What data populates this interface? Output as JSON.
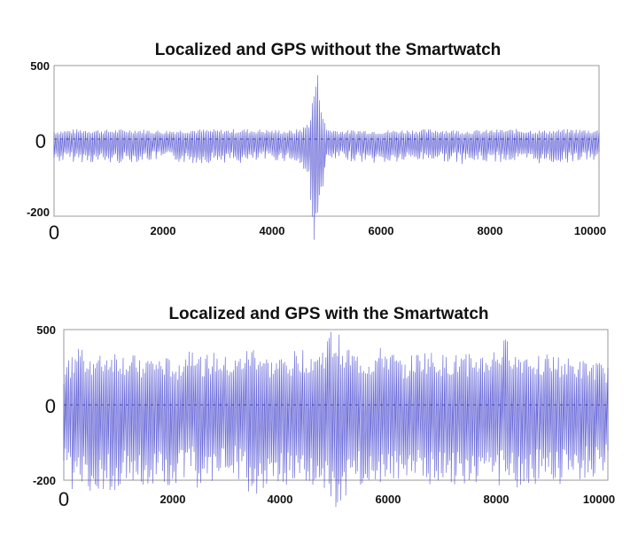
{
  "chart_data": [
    {
      "type": "line",
      "title": "Localized and GPS without the Smartwatch",
      "xlabel": "",
      "ylabel": "",
      "xlim": [
        0,
        10000
      ],
      "ylim": [
        -200,
        500
      ],
      "x_ticks": [
        0,
        2000,
        4000,
        6000,
        8000,
        10000
      ],
      "y_ticks": [
        -200,
        0,
        500
      ],
      "x_tick_labels": [
        "0",
        "2000",
        "4000",
        "6000",
        "8000",
        "10000"
      ],
      "y_tick_labels": [
        "-200",
        "0",
        "500"
      ],
      "grid": false,
      "legend": "none",
      "line_color": "#3b3bcc",
      "series": [
        {
          "x": [
            0,
            500,
            1000,
            1500,
            2000,
            2500,
            3000,
            3500,
            4000,
            4400,
            4600,
            4700,
            4750,
            4800,
            4850,
            4900,
            4950,
            5000,
            5100,
            5300,
            5600,
            6000,
            6500,
            7000,
            7500,
            8000,
            8500,
            9000,
            9500,
            10000
          ],
          "y_max": [
            60,
            70,
            65,
            70,
            60,
            70,
            65,
            70,
            65,
            60,
            90,
            150,
            300,
            480,
            450,
            330,
            140,
            80,
            70,
            60,
            65,
            60,
            65,
            70,
            60,
            65,
            70,
            60,
            70,
            65
          ],
          "y_min": [
            -60,
            -60,
            -65,
            -60,
            -55,
            -65,
            -60,
            -65,
            -55,
            -60,
            -90,
            -150,
            -220,
            -340,
            -250,
            -180,
            -100,
            -70,
            -60,
            -55,
            -60,
            -65,
            -60,
            -55,
            -65,
            -60,
            -60,
            -65,
            -60,
            -55
          ]
        }
      ]
    },
    {
      "type": "line",
      "title": "Localized and GPS with the Smartwatch",
      "xlabel": "",
      "ylabel": "",
      "xlim": [
        0,
        10000
      ],
      "ylim": [
        -200,
        500
      ],
      "x_ticks": [
        0,
        2000,
        4000,
        6000,
        8000,
        10000
      ],
      "y_ticks": [
        -200,
        0,
        500
      ],
      "x_tick_labels": [
        "0",
        "2000",
        "4000",
        "6000",
        "8000",
        "10000"
      ],
      "y_tick_labels": [
        "-200",
        "0",
        "500"
      ],
      "grid": false,
      "legend": "none",
      "line_color": "#3b3bcc",
      "series": [
        {
          "x": [
            0,
            300,
            600,
            900,
            1200,
            1500,
            1800,
            2100,
            2400,
            2500,
            2800,
            3100,
            3500,
            3800,
            4100,
            4400,
            4700,
            4900,
            5000,
            5100,
            5300,
            5600,
            5900,
            6200,
            6600,
            7000,
            7400,
            7800,
            8200,
            8300,
            8600,
            9000,
            9400,
            9800,
            10000
          ],
          "y_max": [
            250,
            420,
            320,
            380,
            330,
            330,
            320,
            300,
            460,
            330,
            350,
            300,
            410,
            300,
            340,
            380,
            360,
            500,
            480,
            470,
            360,
            320,
            400,
            300,
            370,
            330,
            340,
            350,
            460,
            350,
            380,
            330,
            300,
            290,
            250
          ],
          "y_min": [
            -200,
            -250,
            -240,
            -230,
            -200,
            -230,
            -210,
            -220,
            -200,
            -240,
            -210,
            -190,
            -250,
            -200,
            -220,
            -210,
            -250,
            -270,
            -280,
            -270,
            -230,
            -210,
            -210,
            -200,
            -220,
            -200,
            -230,
            -210,
            -220,
            -240,
            -210,
            -220,
            -200,
            -200,
            -190
          ]
        }
      ]
    }
  ]
}
